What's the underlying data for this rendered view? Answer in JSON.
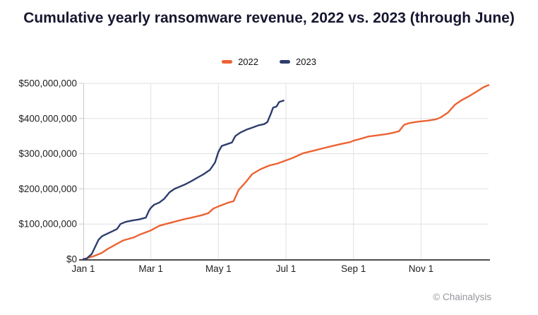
{
  "title": "Cumulative yearly ransomware revenue, 2022 vs. 2023 (through June)",
  "attribution": "© Chainalysis",
  "legend": {
    "items": [
      {
        "label": "2022",
        "color": "#EC6333"
      },
      {
        "label": "2023",
        "color": "#2E3D6D"
      }
    ]
  },
  "chart_data": {
    "type": "line",
    "title": "Cumulative yearly ransomware revenue, 2022 vs. 2023 (through June)",
    "xlabel": "",
    "ylabel": "",
    "grid": true,
    "legend_position": "top",
    "ylim": [
      0,
      500000000
    ],
    "x_range_months": [
      0,
      12
    ],
    "value_unit": "USD_millions",
    "y_ticks": [
      {
        "label": "$0",
        "value": 0
      },
      {
        "label": "$100,000,000",
        "value": 100000000
      },
      {
        "label": "$200,000,000",
        "value": 200000000
      },
      {
        "label": "$300,000,000",
        "value": 300000000
      },
      {
        "label": "$400,000,000",
        "value": 400000000
      },
      {
        "label": "$500,000,000",
        "value": 500000000
      }
    ],
    "x_ticks": [
      {
        "label": "Jan 1",
        "month": 0
      },
      {
        "label": "Mar 1",
        "month": 2
      },
      {
        "label": "May 1",
        "month": 4
      },
      {
        "label": "Jul 1",
        "month": 6
      },
      {
        "label": "Sep 1",
        "month": 8
      },
      {
        "label": "Nov 1",
        "month": 10
      }
    ],
    "colors": {
      "grid": "#E1E1E1",
      "y_axis": "#C9C9C9",
      "x_axis": "#4D4D4D",
      "tick_text": "#1F1F1F"
    },
    "series": [
      {
        "name": "2022",
        "color": "#EC6333",
        "points": [
          [
            0,
            0
          ],
          [
            0.15,
            4
          ],
          [
            0.35,
            10
          ],
          [
            0.55,
            18
          ],
          [
            0.7,
            28
          ],
          [
            0.85,
            36
          ],
          [
            1.0,
            44
          ],
          [
            1.2,
            54
          ],
          [
            1.5,
            62
          ],
          [
            1.7,
            71
          ],
          [
            2.0,
            82
          ],
          [
            2.25,
            95
          ],
          [
            2.4,
            99
          ],
          [
            2.6,
            104
          ],
          [
            2.8,
            109
          ],
          [
            3.0,
            114
          ],
          [
            3.2,
            118
          ],
          [
            3.5,
            125
          ],
          [
            3.7,
            131
          ],
          [
            3.85,
            144
          ],
          [
            4.0,
            150
          ],
          [
            4.3,
            161
          ],
          [
            4.45,
            165
          ],
          [
            4.6,
            197
          ],
          [
            4.8,
            218
          ],
          [
            5.0,
            242
          ],
          [
            5.25,
            256
          ],
          [
            5.5,
            266
          ],
          [
            5.75,
            272
          ],
          [
            6.0,
            281
          ],
          [
            6.2,
            288
          ],
          [
            6.5,
            301
          ],
          [
            6.8,
            308
          ],
          [
            7.0,
            313
          ],
          [
            7.3,
            320
          ],
          [
            7.6,
            327
          ],
          [
            7.9,
            333
          ],
          [
            8.0,
            337
          ],
          [
            8.2,
            342
          ],
          [
            8.45,
            349
          ],
          [
            8.7,
            352
          ],
          [
            9.0,
            356
          ],
          [
            9.2,
            360
          ],
          [
            9.35,
            364
          ],
          [
            9.5,
            382
          ],
          [
            9.65,
            387
          ],
          [
            9.9,
            391
          ],
          [
            10.0,
            392
          ],
          [
            10.2,
            394
          ],
          [
            10.45,
            398
          ],
          [
            10.6,
            404
          ],
          [
            10.8,
            417
          ],
          [
            11.0,
            439
          ],
          [
            11.2,
            452
          ],
          [
            11.45,
            465
          ],
          [
            11.65,
            477
          ],
          [
            11.85,
            489
          ],
          [
            12.0,
            495
          ]
        ]
      },
      {
        "name": "2023",
        "color": "#2E3D6D",
        "points": [
          [
            0,
            0
          ],
          [
            0.1,
            2
          ],
          [
            0.25,
            15
          ],
          [
            0.35,
            35
          ],
          [
            0.45,
            55
          ],
          [
            0.55,
            65
          ],
          [
            0.7,
            72
          ],
          [
            0.85,
            79
          ],
          [
            1.0,
            86
          ],
          [
            1.1,
            100
          ],
          [
            1.25,
            106
          ],
          [
            1.45,
            110
          ],
          [
            1.65,
            113
          ],
          [
            1.85,
            118
          ],
          [
            1.95,
            139
          ],
          [
            2.0,
            146
          ],
          [
            2.1,
            155
          ],
          [
            2.25,
            161
          ],
          [
            2.4,
            172
          ],
          [
            2.55,
            190
          ],
          [
            2.7,
            200
          ],
          [
            3.0,
            212
          ],
          [
            3.2,
            222
          ],
          [
            3.4,
            233
          ],
          [
            3.55,
            241
          ],
          [
            3.75,
            254
          ],
          [
            3.9,
            275
          ],
          [
            4.0,
            305
          ],
          [
            4.1,
            322
          ],
          [
            4.25,
            327
          ],
          [
            4.4,
            332
          ],
          [
            4.5,
            350
          ],
          [
            4.65,
            360
          ],
          [
            4.85,
            369
          ],
          [
            5.0,
            374
          ],
          [
            5.2,
            381
          ],
          [
            5.35,
            384
          ],
          [
            5.45,
            390
          ],
          [
            5.55,
            413
          ],
          [
            5.62,
            431
          ],
          [
            5.72,
            434
          ],
          [
            5.8,
            447
          ],
          [
            5.93,
            451
          ]
        ]
      }
    ]
  }
}
